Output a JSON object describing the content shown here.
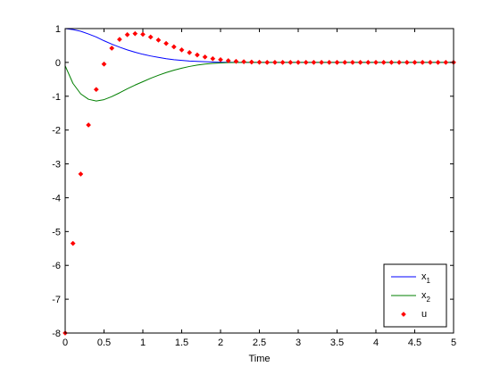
{
  "chart_data": {
    "type": "line",
    "title": "",
    "xlabel": "Time",
    "ylabel": "",
    "xlim": [
      0,
      5
    ],
    "ylim": [
      -8,
      1
    ],
    "xticks": [
      0,
      0.5,
      1,
      1.5,
      2,
      2.5,
      3,
      3.5,
      4,
      4.5,
      5
    ],
    "xtick_labels": [
      "0",
      "0.5",
      "1",
      "1.5",
      "2",
      "2.5",
      "3",
      "3.5",
      "4",
      "4.5",
      "5"
    ],
    "yticks": [
      -8,
      -7,
      -6,
      -5,
      -4,
      -3,
      -2,
      -1,
      0,
      1
    ],
    "ytick_labels": [
      "-8",
      "-7",
      "-6",
      "-5",
      "-4",
      "-3",
      "-2",
      "-1",
      "0",
      "1"
    ],
    "grid": false,
    "legend_position": "bottom-right",
    "x": [
      0,
      0.1,
      0.2,
      0.3,
      0.4,
      0.5,
      0.6,
      0.7,
      0.8,
      0.9,
      1.0,
      1.1,
      1.2,
      1.3,
      1.4,
      1.5,
      1.6,
      1.7,
      1.8,
      1.9,
      2.0,
      2.1,
      2.2,
      2.3,
      2.4,
      2.5,
      2.6,
      2.7,
      2.8,
      2.9,
      3.0,
      3.1,
      3.2,
      3.3,
      3.4,
      3.5,
      3.6,
      3.7,
      3.8,
      3.9,
      4.0,
      4.1,
      4.2,
      4.3,
      4.4,
      4.5,
      4.6,
      4.7,
      4.8,
      4.9,
      5.0
    ],
    "series": [
      {
        "name": "x",
        "name_sub": "1",
        "style": "line",
        "color": "#0000ff",
        "values": [
          1.0,
          0.97,
          0.92,
          0.84,
          0.75,
          0.64,
          0.54,
          0.45,
          0.37,
          0.3,
          0.24,
          0.19,
          0.15,
          0.11,
          0.08,
          0.06,
          0.04,
          0.03,
          0.02,
          0.01,
          0.005,
          0.002,
          0,
          0,
          0,
          0,
          0,
          0,
          0,
          0,
          0,
          0,
          0,
          0,
          0,
          0,
          0,
          0,
          0,
          0,
          0,
          0,
          0,
          0,
          0,
          0,
          0,
          0,
          0,
          0,
          0
        ]
      },
      {
        "name": "x",
        "name_sub": "2",
        "style": "line",
        "color": "#007f00",
        "values": [
          -0.1,
          -0.62,
          -0.93,
          -1.09,
          -1.14,
          -1.1,
          -1.01,
          -0.9,
          -0.78,
          -0.67,
          -0.57,
          -0.47,
          -0.38,
          -0.3,
          -0.23,
          -0.17,
          -0.12,
          -0.08,
          -0.05,
          -0.03,
          -0.015,
          -0.007,
          -0.003,
          0,
          0,
          0,
          0,
          0,
          0,
          0,
          0,
          0,
          0,
          0,
          0,
          0,
          0,
          0,
          0,
          0,
          0,
          0,
          0,
          0,
          0,
          0,
          0,
          0,
          0,
          0,
          0
        ]
      },
      {
        "name": "u",
        "name_sub": "",
        "style": "markers",
        "color": "#ff0000",
        "values": [
          -8.0,
          -5.35,
          -3.3,
          -1.85,
          -0.8,
          -0.05,
          0.42,
          0.68,
          0.82,
          0.85,
          0.83,
          0.75,
          0.66,
          0.56,
          0.46,
          0.37,
          0.29,
          0.22,
          0.16,
          0.11,
          0.08,
          0.05,
          0.03,
          0.02,
          0.01,
          0.005,
          0,
          0,
          0,
          0,
          0,
          0,
          0,
          0,
          0,
          0,
          0,
          0,
          0,
          0,
          0,
          0,
          0,
          0,
          0,
          0,
          0,
          0,
          0,
          0,
          0
        ]
      }
    ]
  }
}
